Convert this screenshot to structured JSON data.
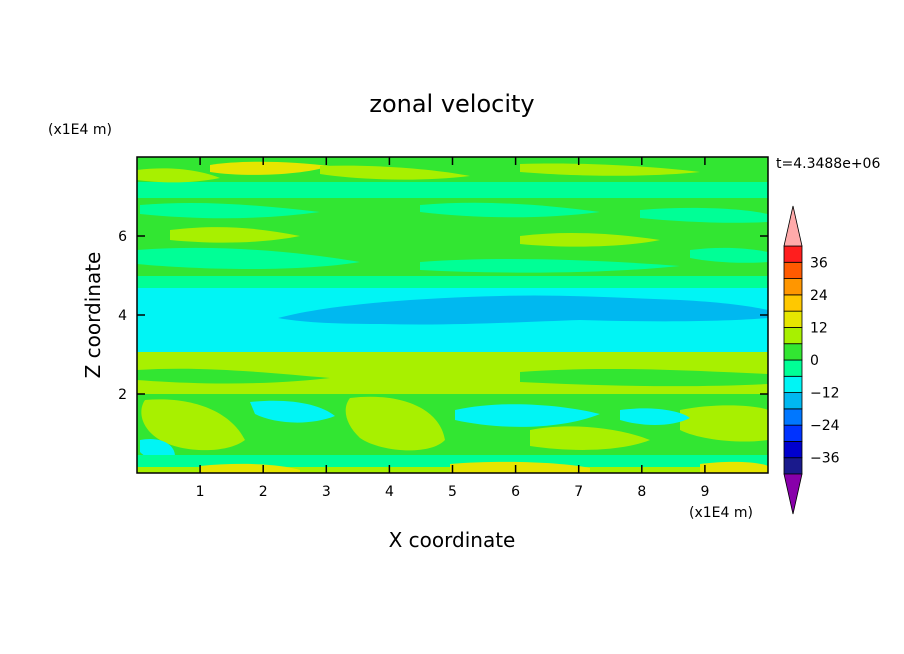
{
  "chart_data": {
    "type": "heatmap",
    "title": "zonal velocity",
    "xlabel": "X coordinate",
    "ylabel": "Z coordinate",
    "x_unit": "(x1E4 m)",
    "y_unit": "(x1E4 m)",
    "time_label": "t=4.3488e+06",
    "xlim": [
      0,
      10
    ],
    "ylim": [
      0,
      8
    ],
    "x_ticks": [
      1,
      2,
      3,
      4,
      5,
      6,
      7,
      8,
      9
    ],
    "y_ticks": [
      2,
      4,
      6
    ],
    "x_tick_labels": [
      "1",
      "2",
      "3",
      "4",
      "5",
      "6",
      "7",
      "8",
      "9"
    ],
    "y_tick_labels": [
      "2",
      "4",
      "6"
    ],
    "colorbar": {
      "levels": [
        -42,
        -36,
        -30,
        -24,
        -18,
        -12,
        -6,
        0,
        6,
        12,
        18,
        24,
        30,
        36,
        42
      ],
      "colors": [
        "#4b0082",
        "#1a1a8c",
        "#0000cd",
        "#0033ff",
        "#0077ff",
        "#00b8f0",
        "#00f5f5",
        "#00ff96",
        "#32e632",
        "#a8f000",
        "#e6e600",
        "#ffc800",
        "#ff9600",
        "#ff5a00",
        "#ff1e1e",
        "#e60000"
      ],
      "under_color": "#8800aa",
      "over_color": "#ffaaaa",
      "tick_values": [
        36,
        24,
        12,
        0,
        -12,
        -24,
        -36
      ],
      "tick_labels": [
        "36",
        "24",
        "12",
        "0",
        "−12",
        "−24",
        "−36"
      ]
    },
    "colors": {
      "band_cyan": "#00f5f5",
      "band_blue": "#00b8f0",
      "band_green": "#32e632",
      "band_lime": "#a8f000",
      "band_aqua_green": "#00ff96",
      "band_yellow": "#e6e600"
    },
    "field_description_bands": [
      {
        "z_range": [
          0.0,
          0.15
        ],
        "value": 6
      },
      {
        "z_range": [
          0.15,
          0.5
        ],
        "value": -4
      },
      {
        "z_range": [
          0.5,
          2.0
        ],
        "value": 4
      },
      {
        "z_range": [
          2.0,
          2.9
        ],
        "value": 6
      },
      {
        "z_range": [
          2.9,
          4.6
        ],
        "value": -10
      },
      {
        "z_range": [
          4.6,
          7.8
        ],
        "value": 2
      },
      {
        "z_range": [
          7.8,
          8.0
        ],
        "value": 4
      }
    ]
  }
}
